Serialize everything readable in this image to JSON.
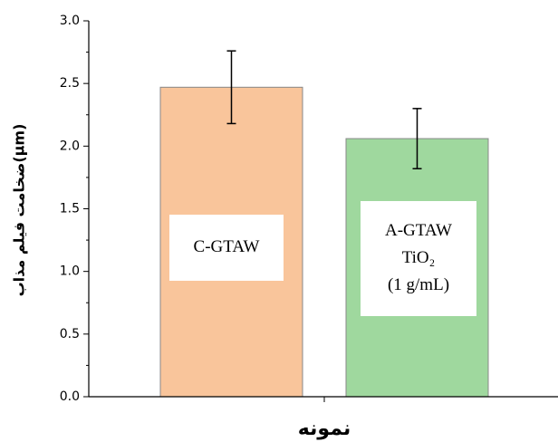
{
  "chart_data": {
    "type": "bar",
    "x_label": "نمونه",
    "y_label": "ضخامت فیلم مذاب(μm)",
    "categories": [
      null,
      null
    ],
    "series": [
      {
        "colors": [
          "#f9c59b",
          "#9fd89e"
        ],
        "values": [
          2.47,
          2.06
        ],
        "errors": [
          0.29,
          0.24
        ]
      }
    ],
    "annotations": [
      [
        "C-GTAW"
      ],
      [
        "A-GTAW",
        "TiO₂",
        "(1 g/mL)"
      ]
    ],
    "ylim": [
      0,
      3
    ],
    "yticks": [
      {
        "value": 0,
        "label": "0.0"
      },
      0.5,
      {
        "value": 1,
        "label": "1.0"
      },
      1.5,
      {
        "value": 2,
        "label": "2.0"
      },
      2.5,
      {
        "value": 3,
        "label": "3.0"
      }
    ]
  }
}
